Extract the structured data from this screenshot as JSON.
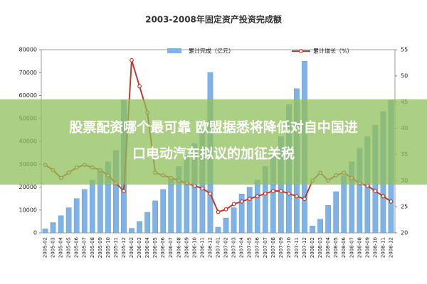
{
  "chart_data": {
    "type": "combo",
    "title": "2003-2008年固定资产投资完成额",
    "categories": [
      "2005-02",
      "2005-03",
      "2005-04",
      "2005-05",
      "2005-06",
      "2005-07",
      "2005-08",
      "2005-09",
      "2005-10",
      "2005-11",
      "2005-12",
      "2006-02",
      "2006-03",
      "2006-04",
      "2006-05",
      "2006-06",
      "2006-07",
      "2006-08",
      "2006-09",
      "2006-10",
      "2006-11",
      "2006-12",
      "2007-01",
      "2007-02",
      "2007-03",
      "2007-04",
      "2007-05",
      "2007-06",
      "2007-07",
      "2007-08",
      "2007-09",
      "2007-10",
      "2007-11",
      "2007-12",
      "2008-02",
      "2008-03",
      "2008-04",
      "2008-05",
      "2008-06",
      "2008-07",
      "2008-08",
      "2008-09",
      "2008-10",
      "2008-11",
      "2008-12"
    ],
    "series": [
      {
        "name": "累计完成（亿元）",
        "type": "bar",
        "color": "#7fb2e5",
        "values": [
          1800,
          4500,
          7500,
          11000,
          15000,
          19000,
          23000,
          27000,
          31000,
          36000,
          58000,
          2000,
          5000,
          9000,
          14000,
          19000,
          24000,
          29000,
          34000,
          39000,
          45000,
          70000,
          2500,
          6500,
          11000,
          17000,
          20000,
          23000,
          29000,
          35000,
          42000,
          56000,
          63000,
          75000,
          3000,
          6000,
          12000,
          18000,
          25000,
          31000,
          37000,
          42000,
          47000,
          53000,
          58000
        ]
      },
      {
        "name": "累计增长（%）",
        "type": "line",
        "axis": "y2",
        "color": "#c0392b",
        "values": [
          33,
          32,
          30.5,
          31.5,
          32.5,
          33,
          32.5,
          32,
          31,
          29.5,
          28,
          53,
          48,
          43,
          31.5,
          31,
          30.5,
          30,
          29.5,
          29,
          28.5,
          27.5,
          24,
          24.5,
          25.5,
          26,
          26.5,
          27,
          27.5,
          28,
          28,
          27.5,
          27,
          26.5,
          30,
          31.5,
          30,
          31,
          31.5,
          30.5,
          29.5,
          29,
          28,
          27,
          26
        ]
      }
    ],
    "ylim": [
      0,
      80000
    ],
    "yticks": [
      0,
      10000,
      20000,
      30000,
      40000,
      50000,
      60000,
      70000,
      80000
    ],
    "y2lim": [
      20,
      55
    ],
    "y2ticks": [
      20,
      25,
      30,
      35,
      40,
      45,
      50,
      55
    ],
    "grid": false
  },
  "banner": {
    "lines": [
      "股票配资哪个最可靠 欧盟据悉将降低对自中国进",
      "口电动汽车拟议的加征关税"
    ]
  }
}
